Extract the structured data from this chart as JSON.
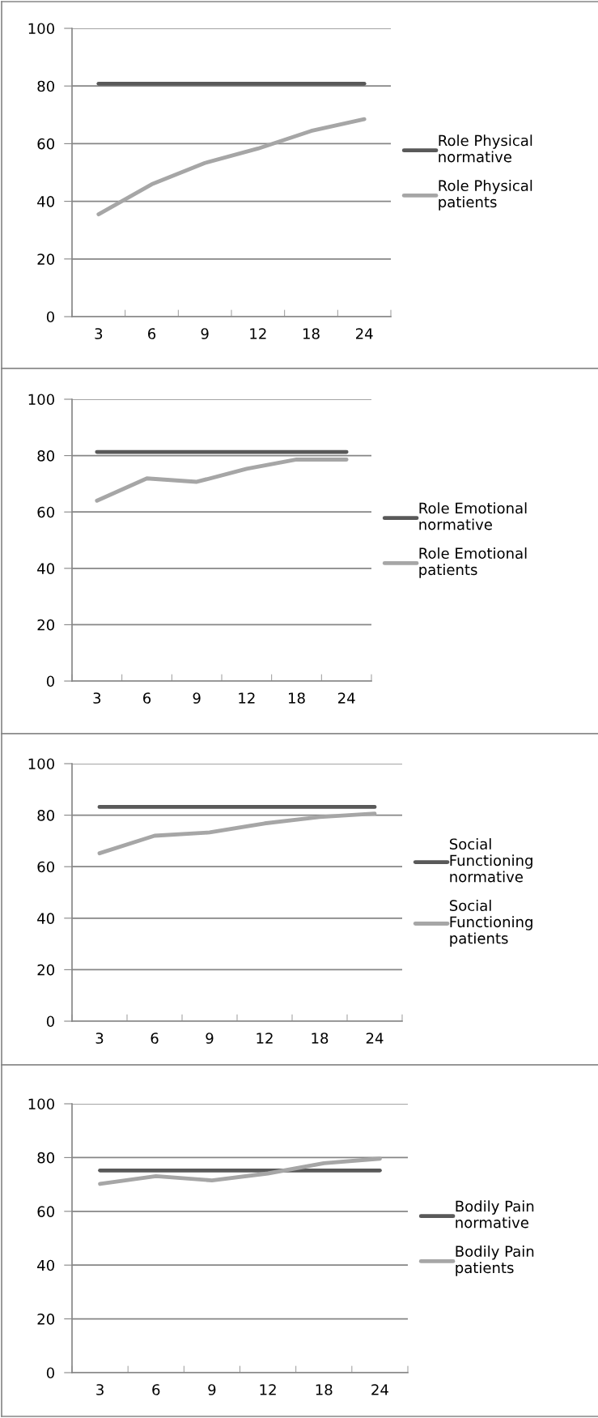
{
  "chart_data": [
    {
      "type": "line",
      "categories": [
        "3",
        "6",
        "9",
        "12",
        "18",
        "24"
      ],
      "ylim": [
        0,
        100
      ],
      "yticks": [
        0,
        20,
        40,
        60,
        80,
        100
      ],
      "grid": "y",
      "legend": "right",
      "marker": "none",
      "line_style": "solid",
      "series": [
        {
          "name": "Role Physical\nnormative",
          "color": "#595959",
          "values": [
            80.8,
            80.8,
            80.8,
            80.8,
            80.8,
            80.8
          ]
        },
        {
          "name": "Role Physical\npatients",
          "color": "#a6a6a6",
          "values": [
            35.5,
            45.9,
            53.3,
            58.3,
            64.4,
            68.5
          ]
        }
      ]
    },
    {
      "type": "line",
      "categories": [
        "3",
        "6",
        "9",
        "12",
        "18",
        "24"
      ],
      "ylim": [
        0,
        100
      ],
      "yticks": [
        0,
        20,
        40,
        60,
        80,
        100
      ],
      "grid": "y",
      "legend": "right",
      "marker": "none",
      "line_style": "solid",
      "series": [
        {
          "name": "Role Emotional\nnormative",
          "color": "#595959",
          "values": [
            81.3,
            81.3,
            81.3,
            81.3,
            81.3,
            81.3
          ]
        },
        {
          "name": "Role Emotional\npatients",
          "color": "#a6a6a6",
          "values": [
            64.0,
            71.9,
            70.7,
            75.3,
            78.6,
            78.6
          ]
        }
      ]
    },
    {
      "type": "line",
      "categories": [
        "3",
        "6",
        "9",
        "12",
        "18",
        "24"
      ],
      "ylim": [
        0,
        100
      ],
      "yticks": [
        0,
        20,
        40,
        60,
        80,
        100
      ],
      "grid": "y",
      "legend": "right",
      "marker": "none",
      "line_style": "solid",
      "series": [
        {
          "name": "Social\nFunctioning\nnormative",
          "color": "#595959",
          "values": [
            83.2,
            83.2,
            83.2,
            83.2,
            83.2,
            83.2
          ]
        },
        {
          "name": "Social\nFunctioning\npatients",
          "color": "#a6a6a6",
          "values": [
            65.2,
            72.0,
            73.3,
            76.8,
            79.3,
            80.6
          ]
        }
      ]
    },
    {
      "type": "line",
      "categories": [
        "3",
        "6",
        "9",
        "12",
        "18",
        "24"
      ],
      "ylim": [
        0,
        100
      ],
      "yticks": [
        0,
        20,
        40,
        60,
        80,
        100
      ],
      "grid": "y",
      "legend": "right",
      "marker": "none",
      "line_style": "solid",
      "series": [
        {
          "name": "Bodily Pain\nnormative",
          "color": "#595959",
          "values": [
            75.2,
            75.2,
            75.2,
            75.2,
            75.2,
            75.2
          ]
        },
        {
          "name": "Bodily Pain\npatients",
          "color": "#a6a6a6",
          "values": [
            70.2,
            73.1,
            71.5,
            74.1,
            77.9,
            79.6
          ]
        }
      ]
    }
  ]
}
